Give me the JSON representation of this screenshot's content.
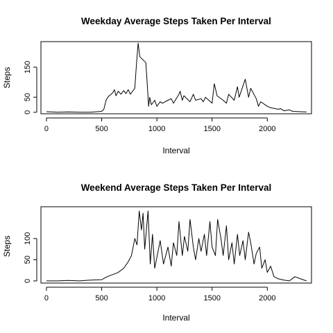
{
  "chart_data": [
    {
      "type": "line",
      "title": "Weekday Average Steps Taken Per Interval",
      "xlabel": "Interval",
      "ylabel": "Steps",
      "xlim": [
        -50,
        2400
      ],
      "ylim": [
        -5,
        235
      ],
      "xticks": [
        0,
        500,
        1000,
        1500,
        2000
      ],
      "yticks": [
        0,
        50,
        150
      ],
      "grid": false,
      "x": [
        0,
        100,
        200,
        300,
        400,
        500,
        520,
        540,
        560,
        600,
        615,
        630,
        650,
        675,
        700,
        720,
        740,
        760,
        780,
        800,
        815,
        830,
        845,
        900,
        910,
        925,
        935,
        950,
        980,
        1000,
        1030,
        1050,
        1100,
        1130,
        1150,
        1200,
        1210,
        1230,
        1245,
        1300,
        1330,
        1350,
        1400,
        1420,
        1440,
        1500,
        1520,
        1545,
        1600,
        1630,
        1650,
        1700,
        1730,
        1745,
        1800,
        1830,
        1850,
        1900,
        1920,
        1940,
        2000,
        2030,
        2100,
        2120,
        2150,
        2200,
        2230,
        2300,
        2355
      ],
      "values": [
        2,
        0,
        1,
        0,
        0,
        3,
        10,
        40,
        52,
        65,
        75,
        55,
        70,
        60,
        72,
        62,
        75,
        60,
        70,
        80,
        160,
        230,
        185,
        165,
        110,
        20,
        50,
        25,
        40,
        20,
        35,
        30,
        40,
        45,
        30,
        60,
        70,
        40,
        55,
        35,
        60,
        40,
        45,
        35,
        50,
        30,
        95,
        55,
        40,
        30,
        60,
        40,
        85,
        50,
        110,
        50,
        80,
        45,
        20,
        35,
        20,
        15,
        10,
        12,
        5,
        8,
        3,
        2,
        1
      ]
    },
    {
      "type": "line",
      "title": "Weekend Average Steps Taken Per Interval",
      "xlabel": "Interval",
      "ylabel": "Steps",
      "xlim": [
        -50,
        2400
      ],
      "ylim": [
        -5,
        175
      ],
      "xticks": [
        0,
        500,
        1000,
        1500,
        2000
      ],
      "yticks": [
        0,
        50,
        100
      ],
      "grid": false,
      "x": [
        0,
        100,
        200,
        300,
        400,
        500,
        550,
        600,
        650,
        700,
        740,
        770,
        800,
        820,
        840,
        860,
        875,
        890,
        905,
        920,
        940,
        960,
        980,
        1000,
        1030,
        1060,
        1080,
        1100,
        1130,
        1150,
        1180,
        1200,
        1230,
        1250,
        1280,
        1300,
        1330,
        1350,
        1380,
        1400,
        1430,
        1450,
        1480,
        1500,
        1530,
        1550,
        1580,
        1600,
        1630,
        1650,
        1680,
        1700,
        1730,
        1750,
        1780,
        1800,
        1830,
        1850,
        1880,
        1900,
        1930,
        1950,
        1980,
        2000,
        2030,
        2060,
        2100,
        2150,
        2200,
        2250,
        2300,
        2355
      ],
      "values": [
        0,
        0,
        1,
        0,
        2,
        3,
        10,
        15,
        20,
        30,
        45,
        60,
        100,
        85,
        165,
        120,
        160,
        75,
        120,
        165,
        40,
        110,
        30,
        55,
        95,
        40,
        60,
        80,
        35,
        90,
        60,
        140,
        60,
        105,
        70,
        145,
        80,
        50,
        100,
        70,
        110,
        60,
        140,
        80,
        60,
        145,
        100,
        60,
        130,
        50,
        90,
        40,
        110,
        60,
        95,
        50,
        115,
        90,
        40,
        65,
        80,
        30,
        50,
        20,
        35,
        10,
        5,
        2,
        0,
        10,
        5,
        0
      ]
    }
  ]
}
